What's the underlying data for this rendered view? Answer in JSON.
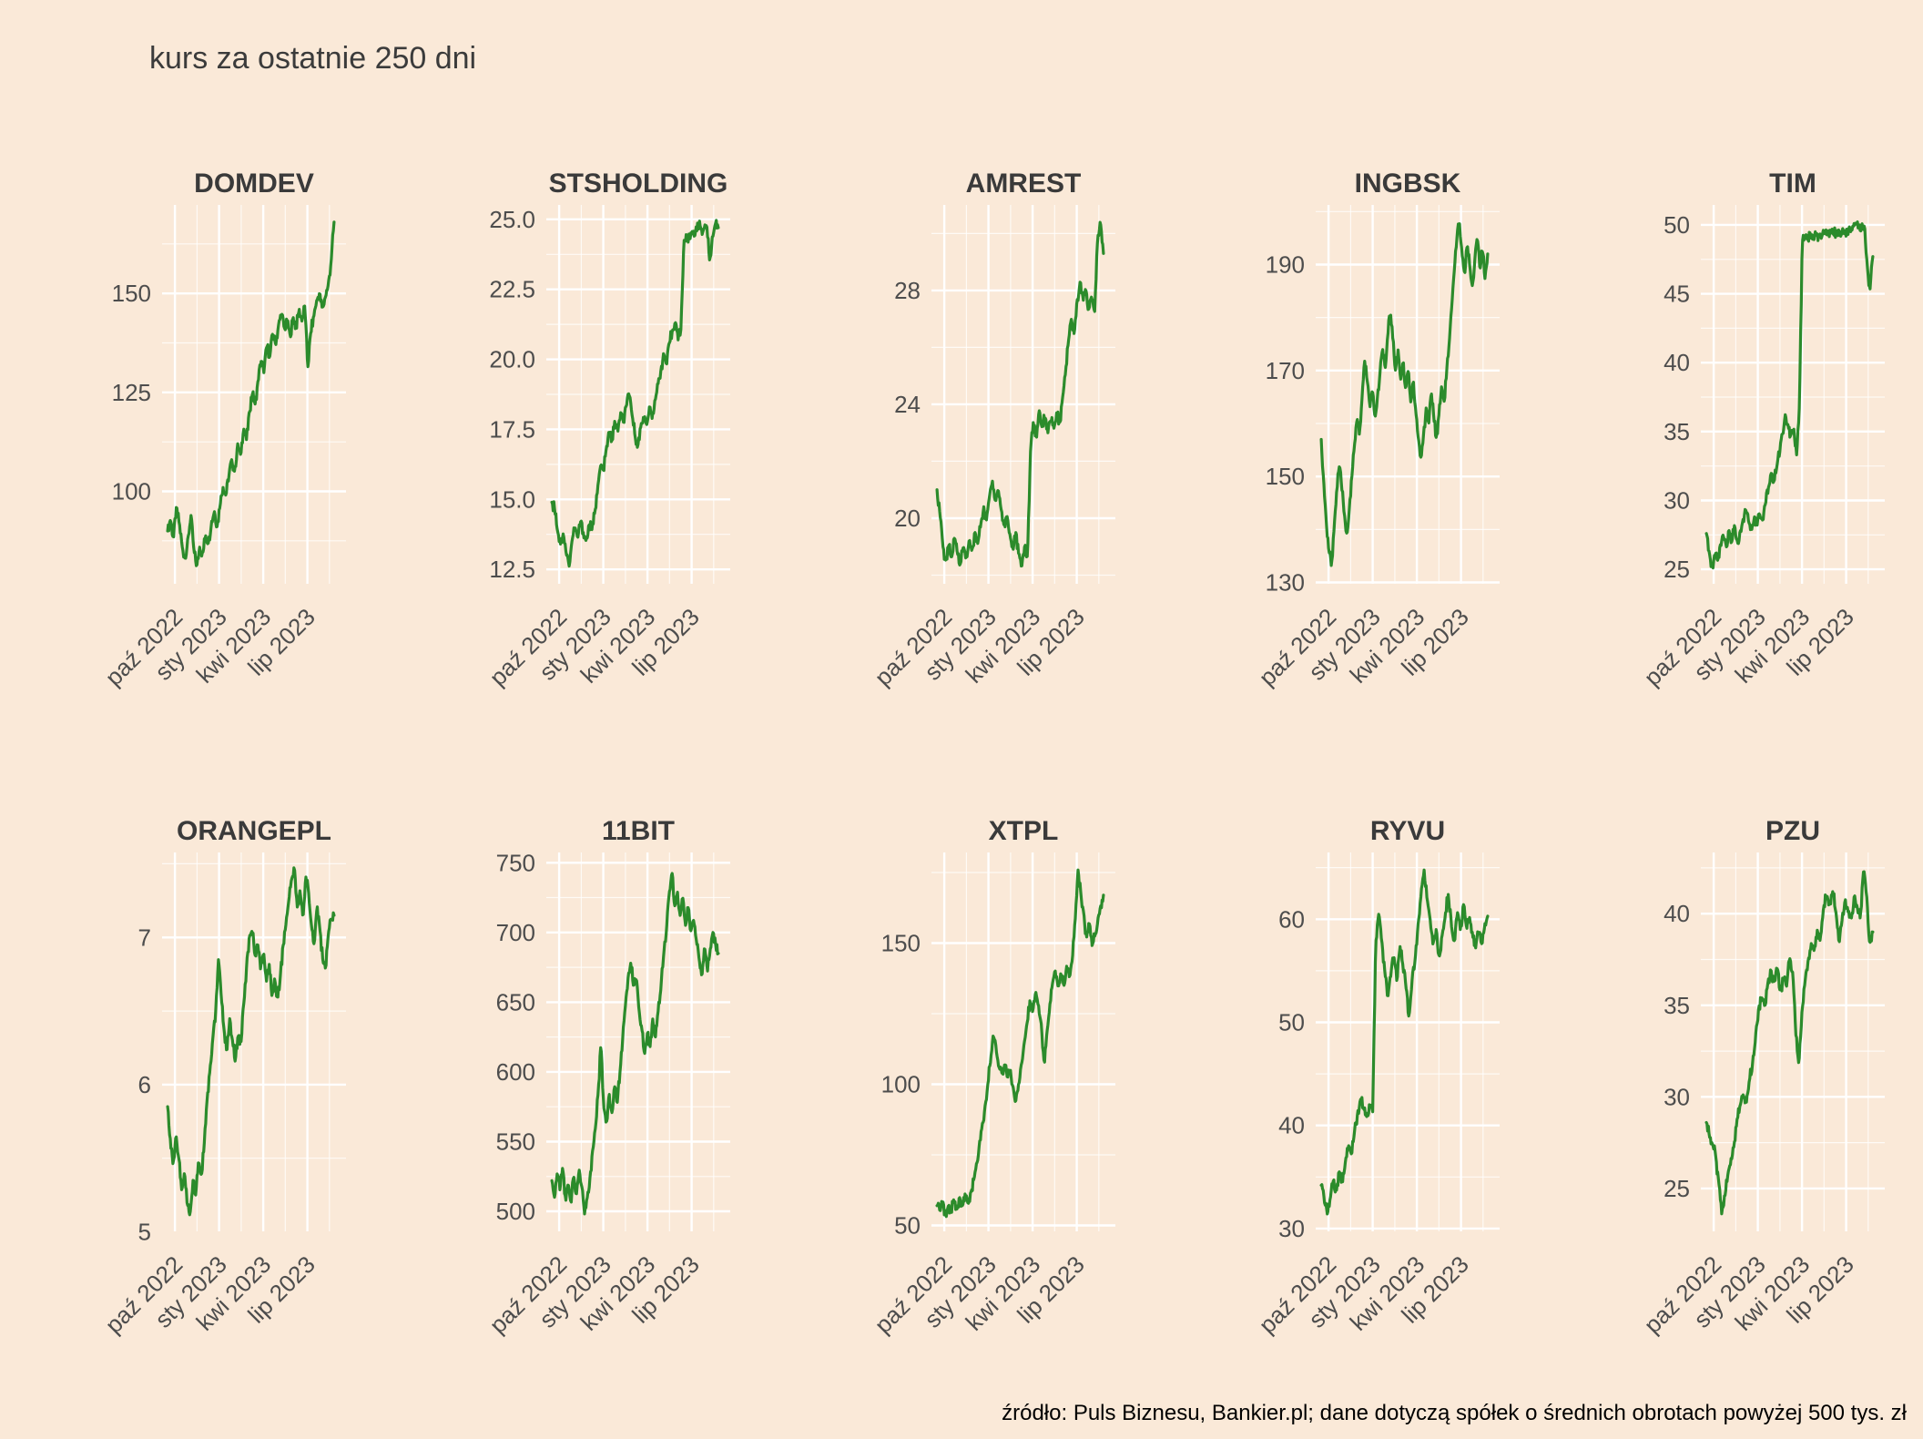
{
  "title": "kurs za ostatnie 250 dni",
  "source_note": "źródło: Puls Biznesu, Bankier.pl; dane dotyczą spółek o średnich obrotach powyżej 500 tys. zł",
  "colors": {
    "background": "#FAE9D8",
    "line": "#2B8B2B",
    "grid_major": "#FFFFFF",
    "grid_minor": "#FFFFFF",
    "tick_text": "#4D4D4D",
    "facet_title_text": "#3A3A3A",
    "main_title_text": "#3B3B3B",
    "source_text": "#000000"
  },
  "chart_data": {
    "type": "line",
    "title": "kurs za ostatnie 250 dni",
    "layout": {
      "rows": 2,
      "cols": 5,
      "grid": true,
      "legend": "none",
      "panel_background": "#FAE9D8"
    },
    "x_domain": "ostatnie 250 dni (paź 2022 - wrz 2023)",
    "x_tick_labels": [
      "paź 2022",
      "sty 2023",
      "kwi 2023",
      "lip 2023"
    ],
    "charts": [
      {
        "name": "DOMDEV",
        "y_ticks": [
          100,
          125,
          150
        ],
        "y_tick_labels": [
          "100",
          "125",
          "150"
        ],
        "values": [
          90,
          93,
          88,
          96,
          92,
          86,
          83,
          88,
          94,
          85,
          81,
          86,
          84,
          89,
          87,
          92,
          95,
          91,
          97,
          101,
          99,
          104,
          108,
          105,
          112,
          109,
          116,
          113,
          120,
          125,
          122,
          128,
          133,
          130,
          137,
          134,
          140,
          137,
          142,
          145,
          141,
          143,
          139,
          144,
          141,
          146,
          143,
          147,
          131,
          140,
          144,
          148,
          150,
          146,
          149,
          152,
          158,
          168
        ]
      },
      {
        "name": "STSHOLDING",
        "y_ticks": [
          12.5,
          15.0,
          17.5,
          20.0,
          22.5,
          25.0
        ],
        "y_tick_labels": [
          "12.5",
          "15.0",
          "17.5",
          "20.0",
          "22.5",
          "25.0"
        ],
        "values": [
          14.9,
          14.7,
          13.9,
          13.4,
          13.8,
          13.1,
          12.6,
          13.5,
          14.0,
          13.6,
          14.2,
          13.8,
          13.5,
          14.1,
          13.9,
          14.6,
          15.4,
          16.2,
          16.0,
          16.8,
          17.4,
          17.1,
          17.8,
          17.4,
          18.1,
          17.7,
          18.4,
          18.7,
          18.0,
          17.3,
          16.9,
          17.6,
          18.0,
          17.6,
          18.3,
          17.9,
          18.6,
          19.1,
          19.6,
          20.2,
          19.8,
          20.6,
          21.0,
          21.4,
          20.7,
          21.1,
          24.2,
          24.4,
          24.3,
          24.6,
          24.5,
          24.8,
          24.7,
          24.6,
          24.8,
          23.5,
          24.4,
          24.9,
          24.7
        ]
      },
      {
        "name": "AMREST",
        "y_ticks": [
          20,
          24,
          28
        ],
        "y_tick_labels": [
          "20",
          "24",
          "28"
        ],
        "values": [
          21.0,
          20.2,
          19.0,
          18.5,
          19.1,
          18.6,
          19.3,
          18.8,
          18.4,
          19.0,
          18.6,
          19.2,
          18.8,
          19.5,
          19.1,
          19.8,
          20.4,
          19.9,
          20.8,
          21.3,
          20.6,
          21.0,
          20.3,
          19.7,
          20.1,
          19.4,
          18.9,
          19.5,
          18.7,
          18.3,
          19.0,
          18.6,
          22.3,
          23.4,
          22.8,
          23.8,
          23.2,
          23.6,
          23.0,
          23.5,
          23.1,
          23.7,
          23.3,
          24.2,
          25.1,
          26.2,
          27.0,
          26.5,
          27.6,
          28.3,
          27.7,
          28.0,
          27.3,
          27.8,
          27.2,
          29.8,
          30.4,
          29.3
        ]
      },
      {
        "name": "INGBSK",
        "y_ticks": [
          130,
          150,
          170,
          190
        ],
        "y_tick_labels": [
          "130",
          "150",
          "170",
          "190"
        ],
        "values": [
          157,
          149,
          141,
          136,
          133,
          140,
          147,
          152,
          148,
          143,
          139,
          144,
          150,
          156,
          161,
          158,
          165,
          172,
          168,
          163,
          166,
          161,
          165,
          170,
          174,
          170,
          177,
          181,
          176,
          170,
          174,
          168,
          172,
          166,
          170,
          164,
          168,
          162,
          157,
          153,
          158,
          163,
          160,
          166,
          161,
          157,
          162,
          167,
          164,
          170,
          175,
          182,
          189,
          195,
          198,
          192,
          188,
          194,
          190,
          186,
          191,
          195,
          189,
          193,
          187,
          192
        ]
      },
      {
        "name": "TIM",
        "y_ticks": [
          25,
          30,
          35,
          40,
          45,
          50
        ],
        "y_tick_labels": [
          "25",
          "30",
          "35",
          "40",
          "45",
          "50"
        ],
        "values": [
          27.6,
          26.3,
          25.2,
          26.0,
          25.6,
          26.8,
          27.5,
          26.6,
          27.9,
          27.0,
          28.3,
          26.9,
          27.7,
          28.6,
          29.3,
          28.4,
          27.8,
          28.8,
          28.2,
          29.0,
          28.4,
          29.8,
          30.9,
          32.0,
          31.3,
          32.6,
          33.5,
          34.8,
          36.3,
          35.4,
          34.7,
          35.3,
          33.3,
          37.0,
          48.8,
          49.0,
          48.9,
          49.2,
          49.0,
          49.3,
          49.1,
          49.2,
          49.4,
          49.2,
          49.5,
          49.3,
          49.4,
          49.6,
          49.4,
          49.3,
          49.5,
          49.7,
          49.9,
          50.2,
          49.8,
          49.9,
          50.0,
          47.0,
          45.2,
          47.7
        ]
      },
      {
        "name": "ORANGEPL",
        "y_ticks": [
          5,
          6,
          7
        ],
        "y_tick_labels": [
          "5",
          "6",
          "7"
        ],
        "values": [
          5.85,
          5.62,
          5.45,
          5.66,
          5.5,
          5.28,
          5.4,
          5.18,
          5.12,
          5.35,
          5.25,
          5.48,
          5.38,
          5.6,
          5.9,
          6.1,
          6.3,
          6.48,
          6.85,
          6.6,
          6.38,
          6.22,
          6.45,
          6.3,
          6.15,
          6.35,
          6.28,
          6.55,
          6.8,
          7.0,
          7.05,
          6.88,
          6.95,
          6.78,
          6.9,
          6.7,
          6.82,
          6.6,
          6.72,
          6.58,
          6.75,
          6.95,
          7.1,
          7.25,
          7.4,
          7.46,
          7.2,
          7.32,
          7.12,
          7.42,
          7.3,
          7.08,
          6.95,
          7.22,
          7.05,
          6.85,
          6.78,
          7.02,
          7.12,
          7.15
        ]
      },
      {
        "name": "11BIT",
        "y_ticks": [
          500,
          550,
          600,
          650,
          700,
          750
        ],
        "y_tick_labels": [
          "500",
          "550",
          "600",
          "650",
          "700",
          "750"
        ],
        "values": [
          522,
          510,
          528,
          515,
          532,
          508,
          520,
          505,
          525,
          512,
          530,
          518,
          498,
          510,
          524,
          545,
          560,
          585,
          620,
          575,
          562,
          585,
          570,
          590,
          578,
          600,
          625,
          648,
          668,
          678,
          660,
          668,
          645,
          630,
          612,
          628,
          618,
          638,
          625,
          645,
          660,
          685,
          700,
          728,
          745,
          718,
          730,
          712,
          725,
          705,
          718,
          700,
          710,
          695,
          680,
          668,
          690,
          672,
          688,
          700,
          692,
          685
        ]
      },
      {
        "name": "XTPL",
        "y_ticks": [
          50,
          100,
          150
        ],
        "y_tick_labels": [
          "50",
          "100",
          "150"
        ],
        "values": [
          57,
          55,
          58,
          54,
          57,
          55,
          59,
          56,
          60,
          57,
          61,
          58,
          62,
          66,
          72,
          78,
          85,
          92,
          100,
          108,
          118,
          112,
          106,
          104,
          107,
          103,
          105,
          99,
          94,
          100,
          107,
          115,
          122,
          130,
          126,
          133,
          128,
          121,
          107,
          118,
          128,
          136,
          140,
          134,
          139,
          135,
          142,
          138,
          145,
          158,
          176,
          168,
          160,
          152,
          157,
          149,
          153,
          158,
          163,
          167
        ]
      },
      {
        "name": "RYVU",
        "y_ticks": [
          30,
          40,
          50,
          60
        ],
        "y_tick_labels": [
          "30",
          "40",
          "50",
          "60"
        ],
        "values": [
          34.2,
          32.8,
          31.4,
          33.0,
          34.6,
          33.6,
          35.5,
          34.5,
          36.5,
          38.0,
          37.2,
          39.5,
          41.0,
          42.6,
          41.6,
          40.8,
          42.0,
          41.2,
          57.5,
          60.5,
          58.0,
          55.0,
          52.5,
          54.5,
          56.5,
          54.0,
          57.5,
          55.5,
          53.5,
          50.5,
          54.0,
          56.0,
          59.5,
          62.5,
          64.8,
          62.0,
          60.0,
          57.5,
          59.0,
          56.2,
          58.5,
          60.5,
          62.5,
          59.5,
          57.8,
          60.8,
          58.8,
          61.5,
          59.2,
          60.2,
          58.5,
          57.2,
          58.8,
          57.6,
          59.4,
          60.3
        ]
      },
      {
        "name": "PZU",
        "y_ticks": [
          25,
          30,
          35,
          40
        ],
        "y_tick_labels": [
          "25",
          "30",
          "35",
          "40"
        ],
        "values": [
          28.6,
          27.9,
          27.4,
          26.8,
          25.3,
          23.6,
          24.6,
          25.8,
          26.6,
          27.3,
          28.8,
          29.6,
          30.2,
          29.7,
          31.0,
          31.8,
          33.4,
          34.8,
          35.4,
          34.9,
          36.3,
          36.9,
          36.2,
          37.0,
          35.8,
          36.4,
          36.0,
          37.6,
          36.8,
          33.5,
          31.8,
          34.6,
          36.3,
          37.4,
          38.4,
          38.0,
          39.1,
          38.6,
          40.3,
          41.0,
          40.5,
          41.2,
          40.2,
          38.4,
          39.6,
          40.8,
          40.1,
          39.7,
          41.0,
          40.3,
          39.8,
          42.4,
          41.0,
          38.3,
          39.0
        ]
      }
    ]
  }
}
